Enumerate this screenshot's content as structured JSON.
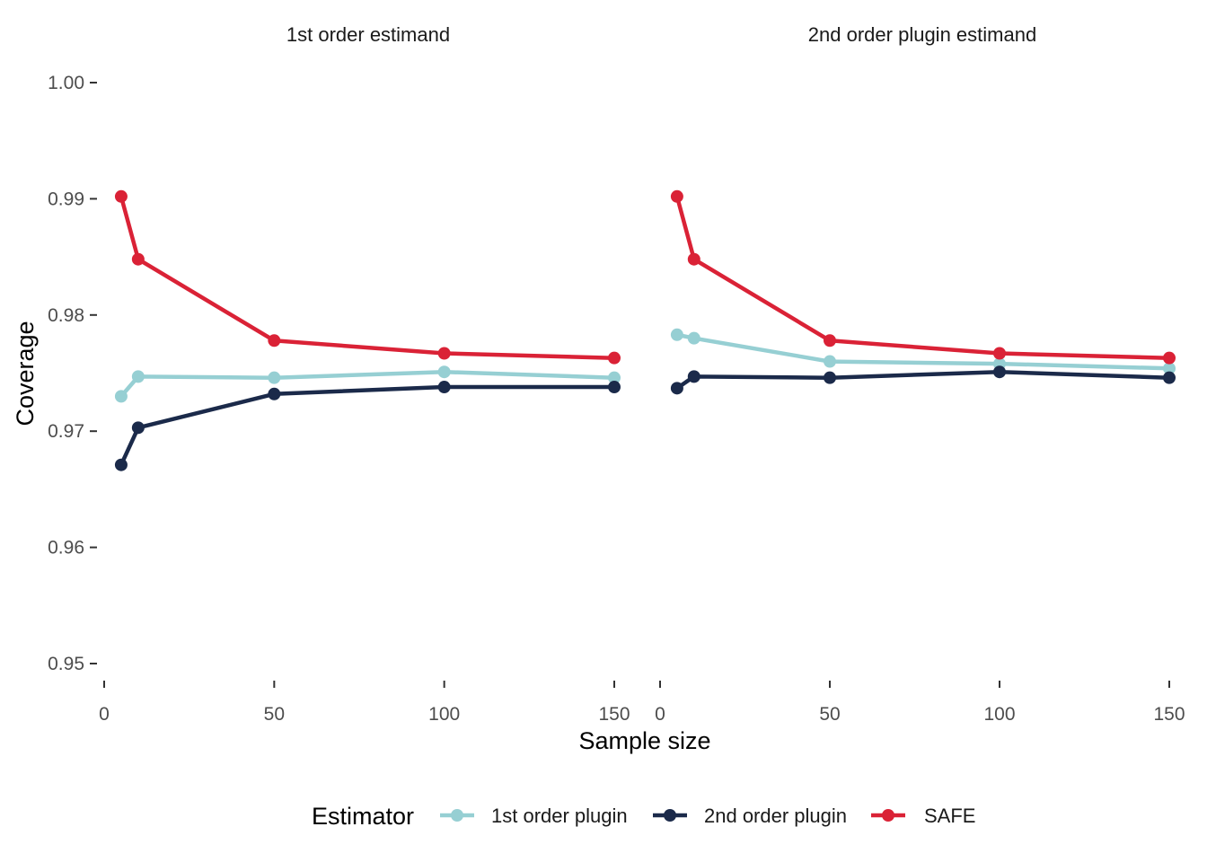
{
  "chart_data": {
    "type": "line",
    "ylabel": "Coverage",
    "xlabel": "Sample size",
    "ylim": [
      0.95,
      1.0
    ],
    "xlim": [
      0,
      150
    ],
    "y_ticks": [
      0.95,
      0.96,
      0.97,
      0.98,
      0.99,
      1.0
    ],
    "y_tick_labels": [
      "0.95",
      "0.96",
      "0.97",
      "0.98",
      "0.99",
      "1.00"
    ],
    "x_ticks": [
      0,
      50,
      100,
      150
    ],
    "x_tick_labels": [
      "0",
      "50",
      "100",
      "150"
    ],
    "legend": {
      "title": "Estimator",
      "position": "bottom",
      "entries": [
        "1st order plugin",
        "2nd order plugin",
        "SAFE"
      ]
    },
    "colors": {
      "1st order plugin": "#96CFD3",
      "2nd order plugin": "#1B2A4A",
      "SAFE": "#DA2236"
    },
    "x": [
      5,
      10,
      50,
      100,
      150
    ],
    "panels": [
      {
        "title": "1st order estimand",
        "series": [
          {
            "name": "1st order plugin",
            "values": [
              0.973,
              0.9747,
              0.9746,
              0.9751,
              0.9746
            ]
          },
          {
            "name": "2nd order plugin",
            "values": [
              0.9671,
              0.9703,
              0.9732,
              0.9738,
              0.9738
            ]
          },
          {
            "name": "SAFE",
            "values": [
              0.9902,
              0.9848,
              0.9778,
              0.9767,
              0.9763
            ]
          }
        ]
      },
      {
        "title": "2nd order plugin estimand",
        "series": [
          {
            "name": "1st order plugin",
            "values": [
              0.9783,
              0.978,
              0.976,
              0.9758,
              0.9754
            ]
          },
          {
            "name": "2nd order plugin",
            "values": [
              0.9737,
              0.9747,
              0.9746,
              0.9751,
              0.9746
            ]
          },
          {
            "name": "SAFE",
            "values": [
              0.9902,
              0.9848,
              0.9778,
              0.9767,
              0.9763
            ]
          }
        ]
      }
    ]
  }
}
